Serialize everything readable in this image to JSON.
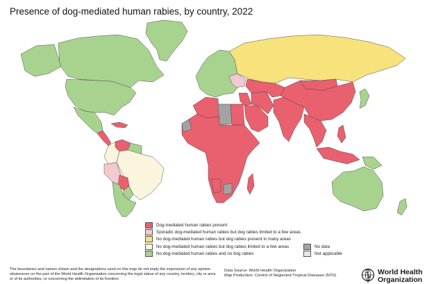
{
  "title": "Presence of dog-mediated human rabies, by country, 2022",
  "colors": {
    "ocean": "#ffffff",
    "border": "#4d4d4d",
    "present": "#e9606e",
    "sporadic": "#f2c9cf",
    "in_many_areas": "#f7e27c",
    "limited_few_areas": "#fbf5dd",
    "none": "#a8d38f",
    "no_data": "#a3a3a3",
    "not_applicable": "#e6e6e6"
  },
  "legend": {
    "items": [
      {
        "key": "present",
        "label": "Dog-mediated human rabies present"
      },
      {
        "key": "sporadic",
        "label": "Sporadic dog-mediated human rabies but dog rabies limited to a few areas"
      },
      {
        "key": "in_many_areas",
        "label": "No dog-mediated human rabies but dog rabies present in many areas"
      },
      {
        "key": "limited_few_areas",
        "label": "No dog-mediated human rabies but dog rabies limited to a few areas"
      },
      {
        "key": "none",
        "label": "No dog-mediated human rabies and no dog rabies"
      }
    ],
    "extra_items": [
      {
        "key": "no_data",
        "label": "No data"
      },
      {
        "key": "not_applicable",
        "label": "Not applicable"
      }
    ]
  },
  "regions": [
    {
      "name": "greenland",
      "status": "none"
    },
    {
      "name": "canada",
      "status": "none"
    },
    {
      "name": "alaska",
      "status": "none"
    },
    {
      "name": "united-states",
      "status": "none"
    },
    {
      "name": "mexico",
      "status": "none"
    },
    {
      "name": "central-america",
      "status": "present"
    },
    {
      "name": "caribbean",
      "status": "present"
    },
    {
      "name": "venezuela",
      "status": "present"
    },
    {
      "name": "guianas",
      "status": "none"
    },
    {
      "name": "colombia",
      "status": "limited_few_areas"
    },
    {
      "name": "peru",
      "status": "sporadic"
    },
    {
      "name": "brazil",
      "status": "limited_few_areas"
    },
    {
      "name": "bolivia",
      "status": "present"
    },
    {
      "name": "paraguay",
      "status": "none"
    },
    {
      "name": "argentina-chile",
      "status": "none"
    },
    {
      "name": "europe",
      "status": "none"
    },
    {
      "name": "ukraine-belarus",
      "status": "sporadic"
    },
    {
      "name": "russia",
      "status": "in_many_areas"
    },
    {
      "name": "north-africa-west",
      "status": "present"
    },
    {
      "name": "libya",
      "status": "no_data"
    },
    {
      "name": "egypt",
      "status": "present"
    },
    {
      "name": "sub-saharan-africa",
      "status": "present"
    },
    {
      "name": "west-sahara",
      "status": "no_data"
    },
    {
      "name": "southern-africa-gap",
      "status": "no_data"
    },
    {
      "name": "namibia",
      "status": "present"
    },
    {
      "name": "madagascar",
      "status": "present"
    },
    {
      "name": "middle-east",
      "status": "present"
    },
    {
      "name": "arabian-peninsula",
      "status": "present"
    },
    {
      "name": "iran",
      "status": "present"
    },
    {
      "name": "central-asia",
      "status": "present"
    },
    {
      "name": "south-asia",
      "status": "present"
    },
    {
      "name": "china",
      "status": "present"
    },
    {
      "name": "mongolia",
      "status": "present"
    },
    {
      "name": "japan",
      "status": "none"
    },
    {
      "name": "southeast-asia",
      "status": "present"
    },
    {
      "name": "indonesia",
      "status": "present"
    },
    {
      "name": "philippines",
      "status": "present"
    },
    {
      "name": "papua-new-guinea",
      "status": "none"
    },
    {
      "name": "australia",
      "status": "none"
    },
    {
      "name": "new-zealand",
      "status": "none"
    }
  ],
  "disclaimer": "The boundaries and names shown and the designations used on this map do not imply the expression of any opinion whatsoever on the part of the World Health Organization concerning the legal status of any country, territory, city or area or of its authorities, or concerning the delimitation of its frontiers",
  "credits": {
    "source": "Data Source: World Health Organization",
    "production": "Map Production: Control of Neglected Tropical Diseases (NTD)"
  },
  "who_logo": {
    "line1": "World Health",
    "line2": "Organization"
  }
}
